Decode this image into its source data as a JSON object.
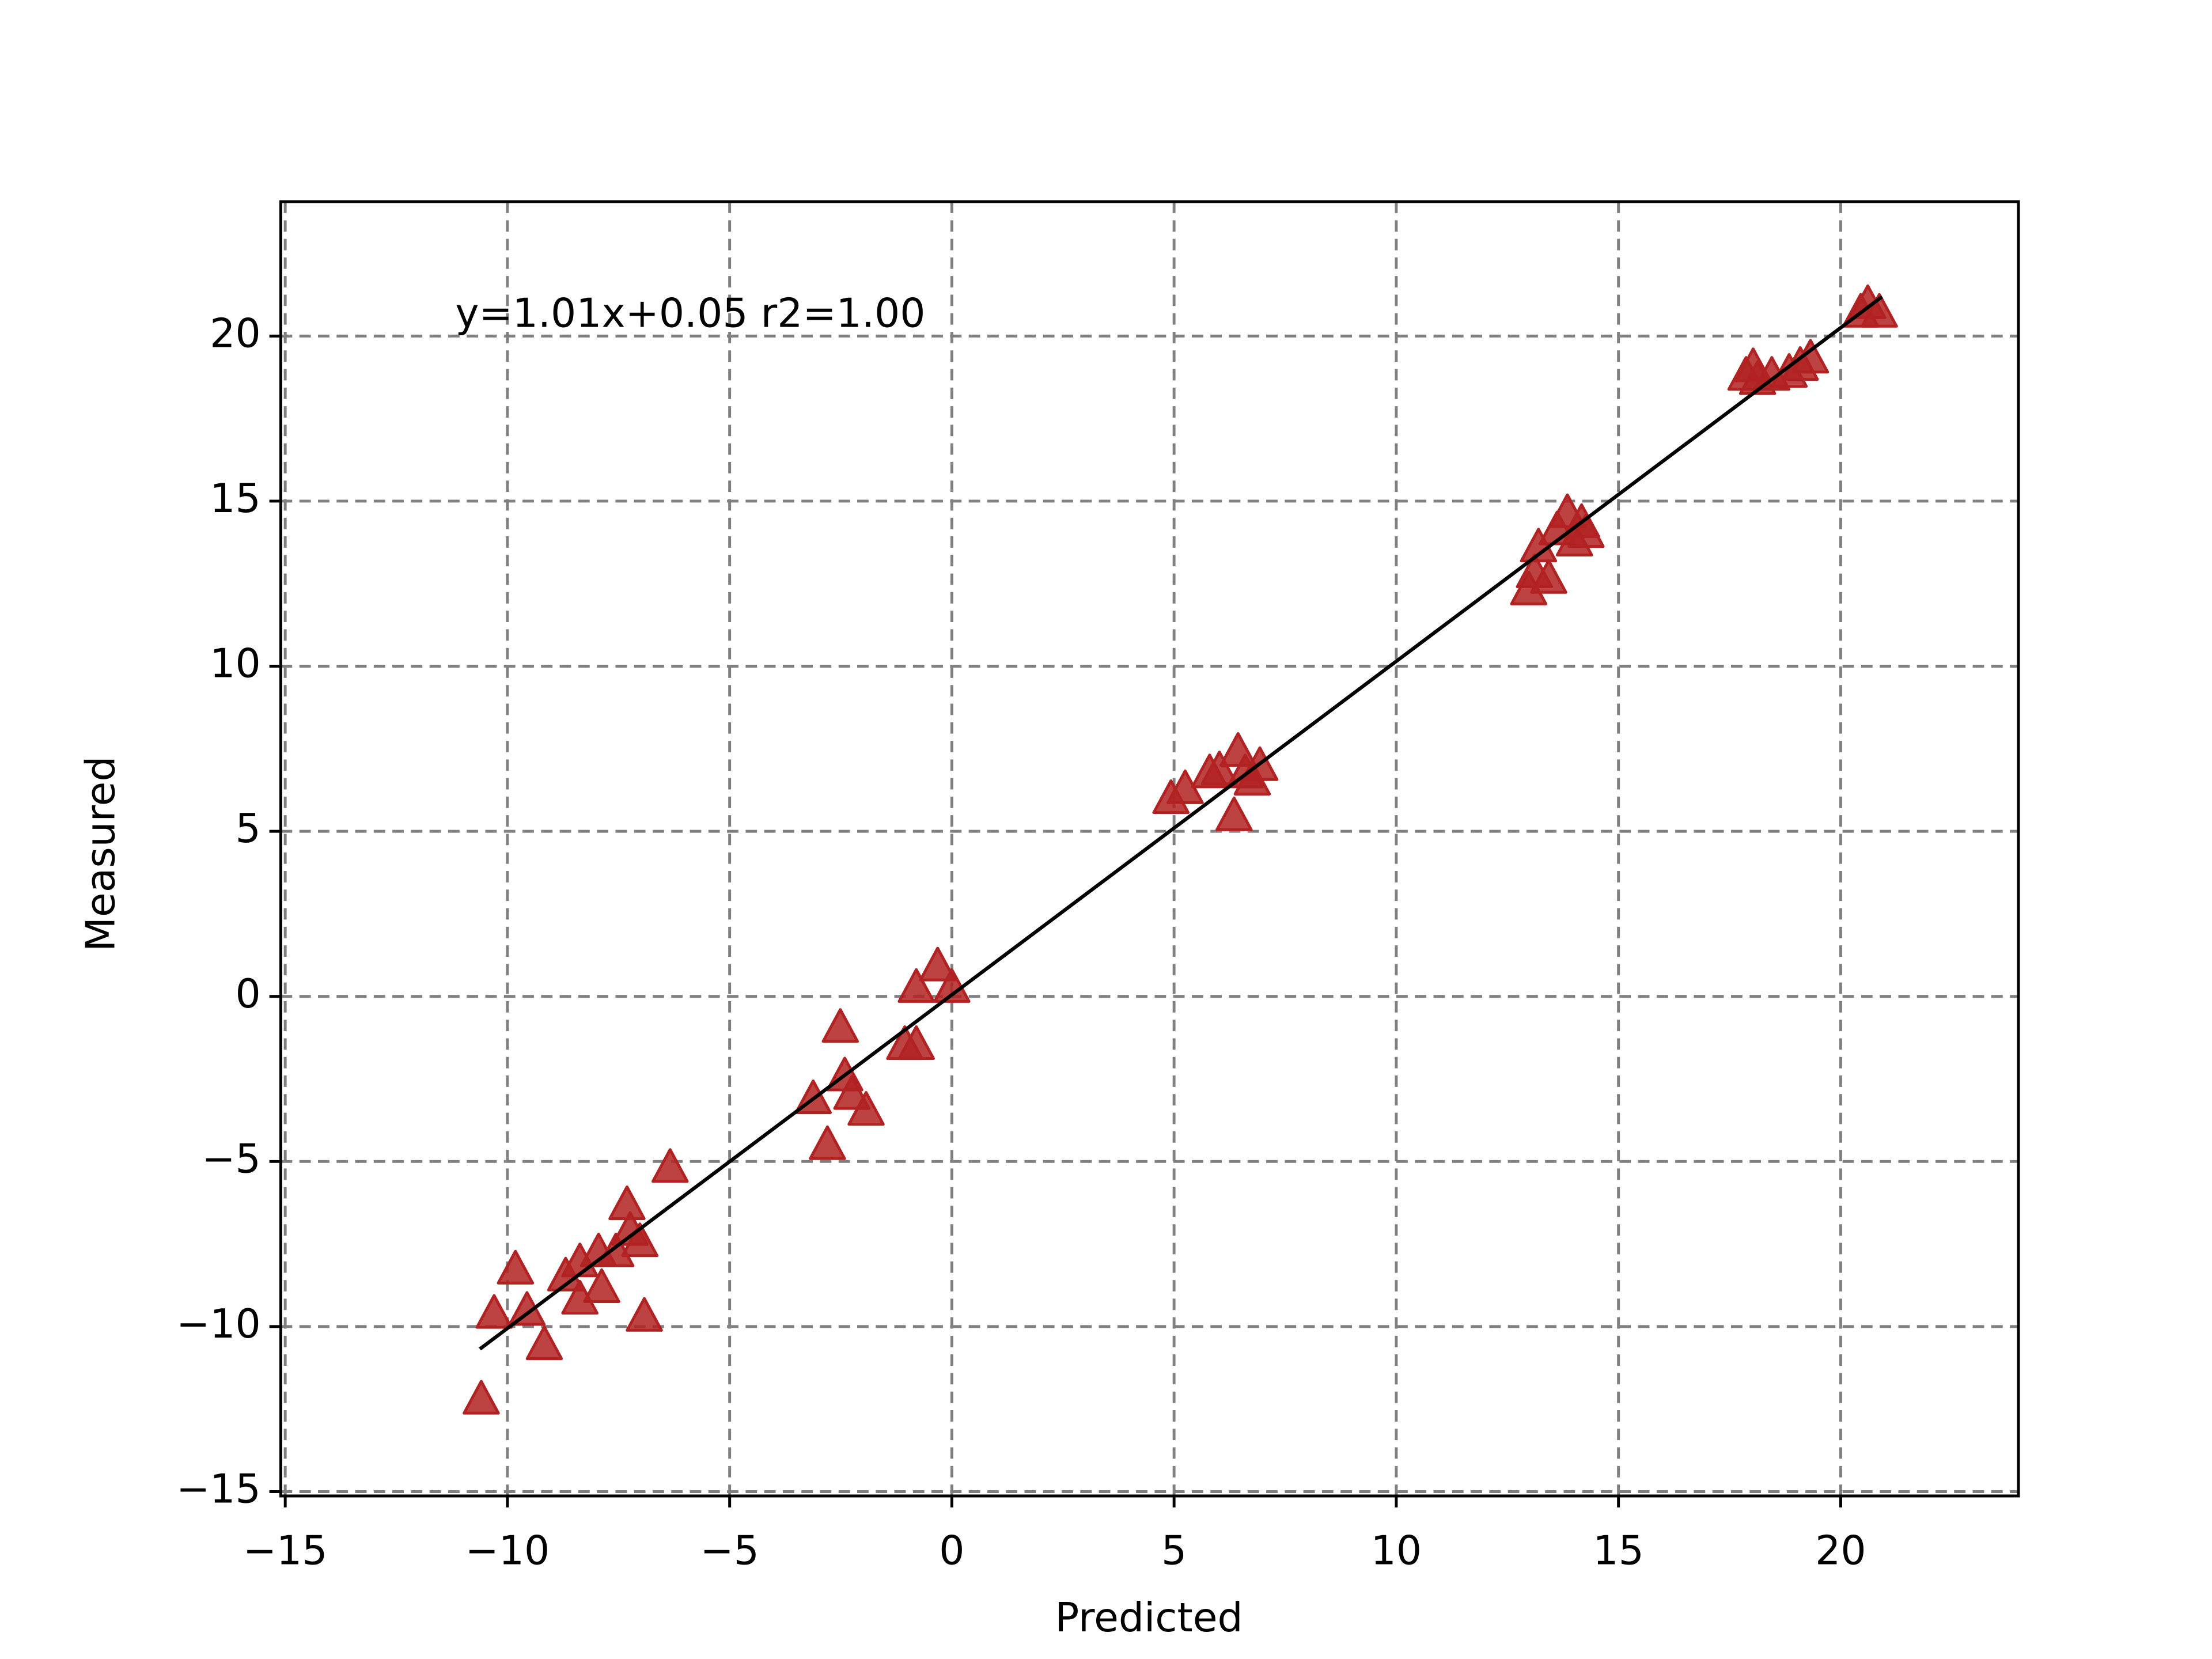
{
  "chart_data": {
    "type": "scatter",
    "x_label": "Predicted",
    "y_label": "Measured",
    "annotation": "y=1.01x+0.05 r2=1.00",
    "xlim": [
      -15.1,
      24.0
    ],
    "ylim": [
      -15.13,
      24.07
    ],
    "xticks": [
      {
        "value": -15,
        "label": "−15"
      },
      {
        "value": -10,
        "label": "−10"
      },
      {
        "value": -5,
        "label": "−5"
      },
      0,
      5,
      10,
      15,
      20
    ],
    "yticks": [
      {
        "value": -15,
        "label": "−15"
      },
      {
        "value": -10,
        "label": "−10"
      },
      {
        "value": -5,
        "label": "−5"
      },
      0,
      5,
      10,
      15,
      20
    ],
    "grid": true,
    "points": {
      "color": "#b22222",
      "x": [
        -10.59,
        -10.3,
        -9.82,
        -9.56,
        -9.17,
        -8.69,
        -8.37,
        -8.37,
        -7.95,
        -7.88,
        -7.56,
        -7.31,
        -7.24,
        -7.02,
        -6.92,
        -6.34,
        -3.12,
        -2.8,
        -2.51,
        -2.41,
        -2.25,
        -1.93,
        -1.06,
        -0.8,
        -0.8,
        -0.32,
        0.0,
        4.93,
        5.25,
        5.8,
        6.35,
        6.44,
        6.76,
        6.93,
        6.6,
        6.02,
        12.98,
        13.11,
        13.2,
        13.43,
        13.62,
        13.85,
        14.01,
        14.17,
        14.27,
        17.87,
        18.03,
        18.45,
        18.84,
        19.09,
        19.32,
        18.13,
        20.45,
        20.61,
        20.87
      ],
      "y": [
        -12.18,
        -9.58,
        -8.24,
        -9.49,
        -10.53,
        -8.45,
        -9.15,
        -8.02,
        -7.72,
        -8.8,
        -7.72,
        -6.29,
        -7.07,
        -7.41,
        -9.67,
        -5.16,
        -3.08,
        -4.47,
        -0.92,
        -2.39,
        -2.95,
        -3.43,
        -1.44,
        0.29,
        -1.44,
        0.94,
        0.29,
        6.01,
        6.31,
        6.79,
        5.49,
        7.44,
        6.57,
        7.01,
        6.79,
        6.88,
        12.33,
        12.85,
        13.63,
        12.68,
        14.15,
        14.67,
        13.81,
        14.37,
        14.07,
        18.83,
        19.09,
        18.83,
        18.92,
        19.13,
        19.35,
        18.7,
        20.74,
        21.0,
        20.74
      ]
    },
    "fit_line": {
      "color": "#000000",
      "x": [
        -10.62,
        20.93
      ],
      "y": [
        -10.68,
        21.19
      ]
    }
  }
}
